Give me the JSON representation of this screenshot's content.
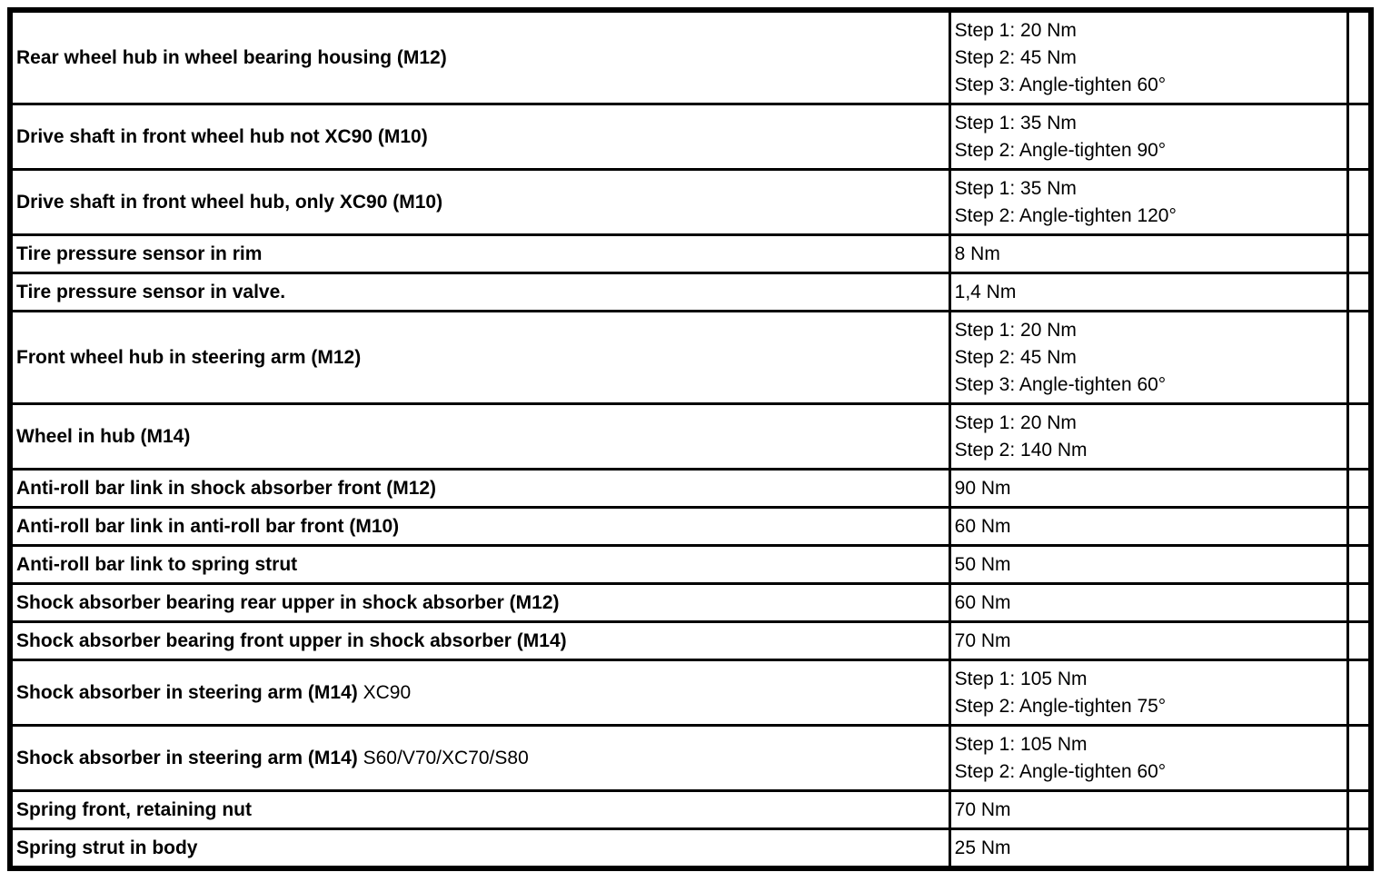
{
  "table": {
    "description": "Torque specification table",
    "colors": {
      "border": "#000000",
      "text": "#000000",
      "background": "#ffffff"
    },
    "columns": [
      "item",
      "torque"
    ],
    "rows": [
      {
        "item": "Rear wheel hub in wheel bearing housing (M12)",
        "item_suffix": "",
        "torque": [
          "Step 1: 20 Nm",
          "Step 2: 45 Nm",
          "Step 3: Angle-tighten 60°"
        ]
      },
      {
        "item": "Drive shaft in front wheel hub not XC90 (M10)",
        "item_suffix": "",
        "torque": [
          "Step 1: 35 Nm",
          "Step 2: Angle-tighten 90°"
        ]
      },
      {
        "item": "Drive shaft in front wheel hub, only XC90 (M10)",
        "item_suffix": "",
        "torque": [
          "Step 1: 35 Nm",
          "Step 2: Angle-tighten 120°"
        ]
      },
      {
        "item": "Tire pressure sensor in rim",
        "item_suffix": "",
        "torque": [
          "8 Nm"
        ]
      },
      {
        "item": "Tire pressure sensor in valve.",
        "item_suffix": "",
        "torque": [
          "1,4 Nm"
        ]
      },
      {
        "item": "Front wheel hub in steering arm (M12)",
        "item_suffix": "",
        "torque": [
          "Step 1: 20 Nm",
          "Step 2: 45 Nm",
          "Step 3: Angle-tighten 60°"
        ]
      },
      {
        "item": "Wheel in hub (M14)",
        "item_suffix": "",
        "torque": [
          "Step 1: 20 Nm",
          "Step 2: 140 Nm"
        ]
      },
      {
        "item": "Anti-roll bar link in shock absorber front (M12)",
        "item_suffix": "",
        "torque": [
          "90 Nm"
        ]
      },
      {
        "item": "Anti-roll bar link in anti-roll bar front (M10)",
        "item_suffix": "",
        "torque": [
          "60 Nm"
        ]
      },
      {
        "item": "Anti-roll bar link to spring strut",
        "item_suffix": "",
        "torque": [
          "50 Nm"
        ]
      },
      {
        "item": "Shock absorber bearing rear upper in shock absorber (M12)",
        "item_suffix": "",
        "torque": [
          "60 Nm"
        ]
      },
      {
        "item": "Shock absorber bearing front upper in shock absorber (M14)",
        "item_suffix": "",
        "torque": [
          "70 Nm"
        ]
      },
      {
        "item": "Shock absorber in steering arm (M14)",
        "item_suffix": " XC90",
        "torque": [
          "Step 1: 105 Nm",
          "Step 2: Angle-tighten 75°"
        ]
      },
      {
        "item": "Shock absorber in steering arm (M14)",
        "item_suffix": " S60/V70/XC70/S80",
        "torque": [
          "Step 1: 105 Nm",
          "Step 2: Angle-tighten 60°"
        ]
      },
      {
        "item": "Spring front, retaining nut",
        "item_suffix": "",
        "torque": [
          "70 Nm"
        ]
      },
      {
        "item": "Spring strut in body",
        "item_suffix": "",
        "torque": [
          "25 Nm"
        ]
      }
    ]
  }
}
